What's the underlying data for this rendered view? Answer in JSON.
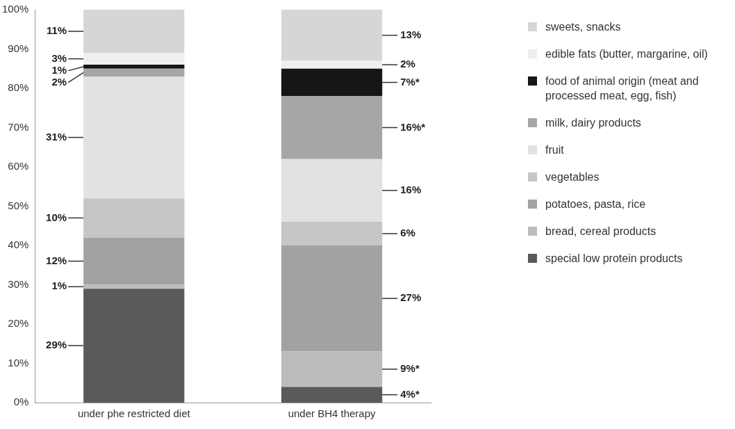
{
  "chart_data": {
    "type": "bar",
    "stacked": true,
    "legend": "right",
    "categories": [
      "under phe restricted diet",
      "under BH4 therapy"
    ],
    "ylim": [
      0,
      100
    ],
    "yticks": [
      {
        "value": 0,
        "label": "0%"
      },
      {
        "value": 10,
        "label": "10%"
      },
      {
        "value": 20,
        "label": "20%"
      },
      {
        "value": 30,
        "label": "30%"
      },
      {
        "value": 40,
        "label": "40%"
      },
      {
        "value": 50,
        "label": "50%"
      },
      {
        "value": 60,
        "label": "60%"
      },
      {
        "value": 70,
        "label": "70%"
      },
      {
        "value": 80,
        "label": "80%"
      },
      {
        "value": 90,
        "label": "90%"
      },
      {
        "value": 100,
        "label": "100%"
      }
    ],
    "series": [
      {
        "name": "special low protein products",
        "color": "#5a5a5a",
        "values": [
          29,
          4
        ],
        "value_labels": [
          "29%",
          "4%*"
        ]
      },
      {
        "name": "bread, cereal products",
        "color": "#bcbcbc",
        "values": [
          1,
          9
        ],
        "value_labels": [
          "1%",
          "9%*"
        ]
      },
      {
        "name": "potatoes, pasta, rice",
        "color": "#a2a2a2",
        "values": [
          12,
          27
        ],
        "value_labels": [
          "12%",
          "27%"
        ]
      },
      {
        "name": "vegetables",
        "color": "#c6c6c6",
        "values": [
          10,
          6
        ],
        "value_labels": [
          "10%",
          "6%"
        ]
      },
      {
        "name": "fruit",
        "color": "#e2e2e2",
        "values": [
          31,
          16
        ],
        "value_labels": [
          "31%",
          "16%"
        ]
      },
      {
        "name": "milk, dairy products",
        "color": "#a6a6a6",
        "values": [
          2,
          16
        ],
        "value_labels": [
          "2%",
          "16%*"
        ]
      },
      {
        "name": "food of animal origin (meat and processed meat, egg, fish)",
        "color": "#161616",
        "values": [
          1,
          7
        ],
        "value_labels": [
          "1%",
          "7%*"
        ]
      },
      {
        "name": "edible fats (butter, margarine, oil)",
        "color": "#efefef",
        "values": [
          3,
          2
        ],
        "value_labels": [
          "3%",
          "2%"
        ]
      },
      {
        "name": "sweets, snacks",
        "color": "#d6d6d6",
        "values": [
          11,
          13
        ],
        "value_labels": [
          "11%",
          "13%"
        ]
      }
    ]
  }
}
